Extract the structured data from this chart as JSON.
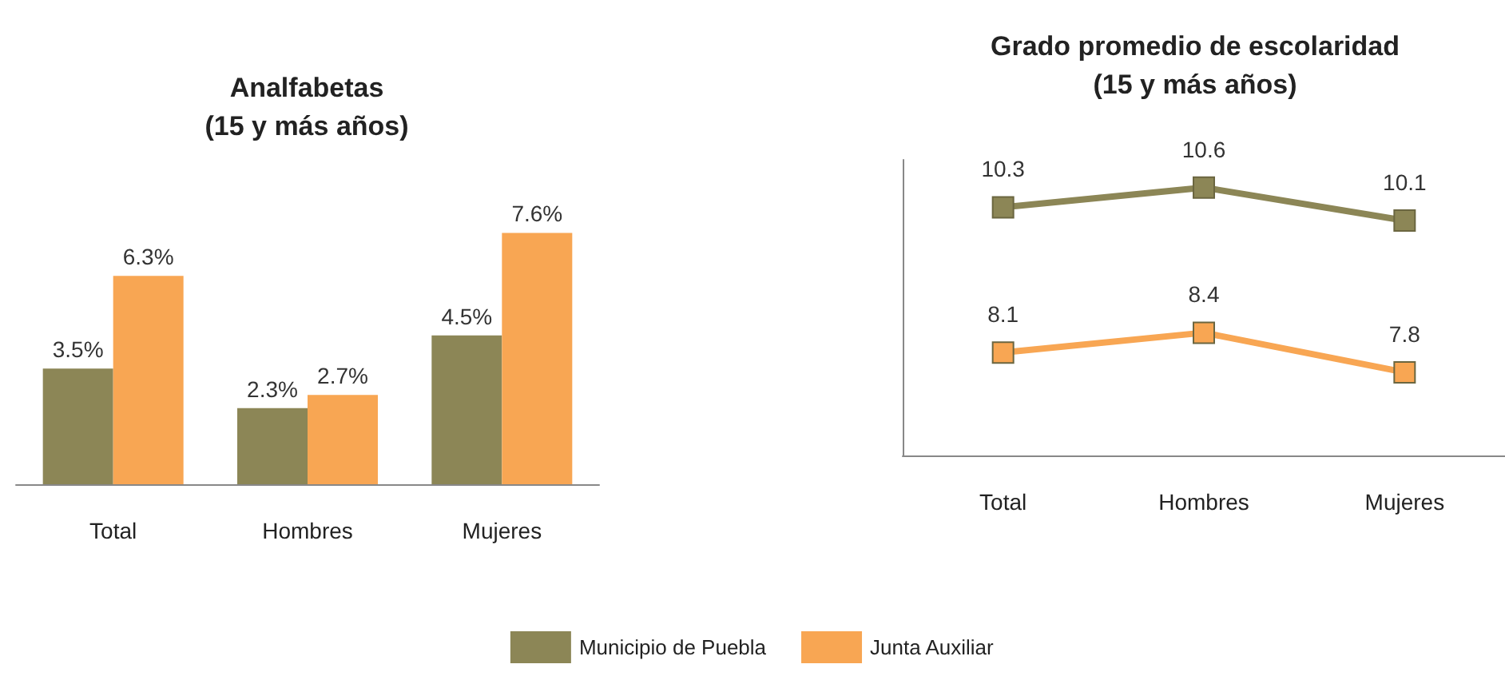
{
  "chart_data": [
    {
      "type": "bar",
      "title": "Analfabetas\n(15 y más años)",
      "categories": [
        "Total",
        "Hombres",
        "Mujeres"
      ],
      "series": [
        {
          "name": "Municipio de Puebla",
          "color": "#8c8656",
          "values": [
            3.5,
            2.3,
            4.5
          ],
          "value_labels": [
            "3.5%",
            "2.3%",
            "4.5%"
          ]
        },
        {
          "name": "Junta Auxiliar",
          "color": "#f8a653",
          "values": [
            6.3,
            2.7,
            7.6
          ],
          "value_labels": [
            "6.3%",
            "2.7%",
            "7.6%"
          ]
        }
      ],
      "legend": "bottom",
      "grid": false,
      "tick_labels": "x"
    },
    {
      "type": "line",
      "title": "Grado promedio de escolaridad\n(15 y más años)",
      "categories": [
        "Total",
        "Hombres",
        "Mujeres"
      ],
      "series": [
        {
          "color": "#8c8656",
          "values": [
            10.3,
            10.6,
            10.1
          ]
        },
        {
          "color": "#f8a653",
          "values": [
            8.1,
            8.4,
            7.8
          ]
        }
      ],
      "data_labels": true,
      "marker": "square",
      "grid": false,
      "tick_labels": "x"
    }
  ]
}
